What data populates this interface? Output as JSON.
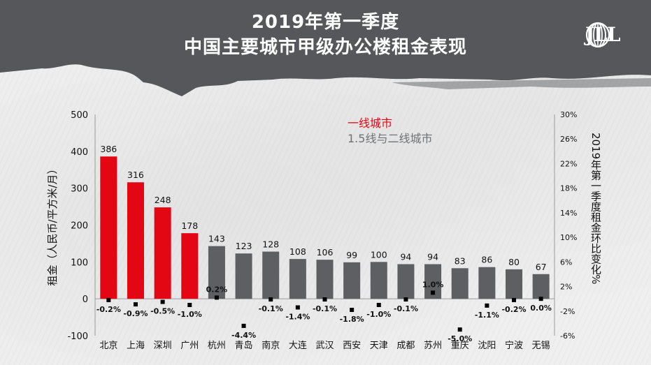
{
  "header": {
    "title_line1": "2019年第一季度",
    "title_line2": "中国主要城市甲级办公楼租金表现",
    "logo_text": "JLL",
    "logo_icon": "jll-swirl-icon"
  },
  "colors": {
    "tier1": "#e30613",
    "tier2": "#5d5f62",
    "banner": "#55575a",
    "marker": "#000000"
  },
  "legend": {
    "tier1_label": "一线城市",
    "tier2_label": "1.5线与二线城市"
  },
  "chart_data": {
    "type": "bar",
    "title": "",
    "ylabel": "租金（人民币/平方米/月）",
    "y2label": "2019年第一季度租金环比变化%",
    "xlabel": "",
    "ylim": [
      -100,
      500
    ],
    "y2lim": [
      -6,
      30
    ],
    "yticks": [
      -100,
      0,
      100,
      200,
      300,
      400,
      500
    ],
    "y2ticks": [
      "-6%",
      "-2%",
      "2%",
      "6%",
      "10%",
      "14%",
      "18%",
      "22%",
      "26%",
      "30%"
    ],
    "y2tick_values": [
      -6,
      -2,
      2,
      6,
      10,
      14,
      18,
      22,
      26,
      30
    ],
    "grid": false,
    "legend_position": "top-center",
    "categories": [
      "北京",
      "上海",
      "深圳",
      "广州",
      "杭州",
      "青岛",
      "南京",
      "大连",
      "武汉",
      "西安",
      "天津",
      "成都",
      "苏州",
      "重庆",
      "沈阳",
      "宁波",
      "无锡"
    ],
    "tiers": [
      1,
      1,
      1,
      1,
      2,
      2,
      2,
      2,
      2,
      2,
      2,
      2,
      2,
      2,
      2,
      2,
      2
    ],
    "series": [
      {
        "name": "",
        "kind": "bar",
        "axis": "left",
        "values": [
          386,
          316,
          248,
          178,
          143,
          123,
          128,
          108,
          106,
          99,
          100,
          94,
          94,
          83,
          86,
          80,
          67
        ],
        "labels": [
          "386",
          "316",
          "248",
          "178",
          "143",
          "123",
          "128",
          "108",
          "106",
          "99",
          "100",
          "94",
          "94",
          "83",
          "86",
          "80",
          "67"
        ]
      },
      {
        "name": "",
        "kind": "marker",
        "axis": "right",
        "values": [
          -0.2,
          -0.9,
          -0.5,
          -1.0,
          0.2,
          -4.4,
          -0.1,
          -1.4,
          -0.1,
          -1.8,
          -1.0,
          -0.1,
          1.0,
          -5.0,
          -1.1,
          -0.2,
          0.0
        ],
        "labels": [
          "-0.2%",
          "-0.9%",
          "-0.5%",
          "-1.0%",
          "0.2%",
          "-4.4%",
          "-0.1%",
          "-1.4%",
          "-0.1%",
          "-1.8%",
          "-1.0%",
          "-0.1%",
          "1.0%",
          "-5.0%",
          "-1.1%",
          "-0.2%",
          "0.0%"
        ]
      }
    ]
  }
}
